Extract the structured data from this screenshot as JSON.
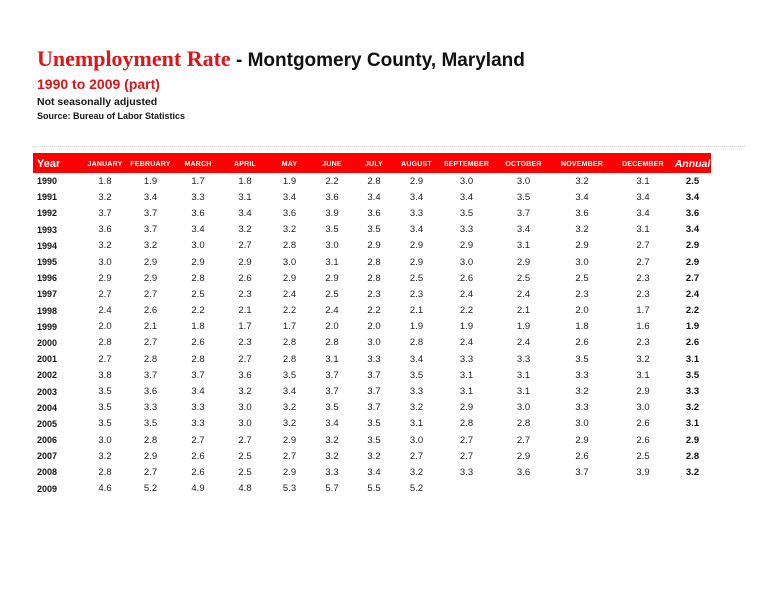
{
  "header": {
    "title_red": "Unemployment Rate",
    "title_black": " - Montgomery County, Maryland",
    "subtitle": "1990 to 2009 (part)",
    "note": "Not seasonally adjusted",
    "source": "Source: Bureau of Labor Statistics"
  },
  "colors": {
    "band_red": "#fe0000",
    "title_red": "#dd1418",
    "header_text": "#ffffff"
  },
  "table": {
    "year_header": "Year",
    "annual_header": "Annual",
    "month_headers": [
      "JANUARY",
      "FEBRUARY",
      "MARCH",
      "APRIL",
      "MAY",
      "JUNE",
      "JULY",
      "AUGUST",
      "SEPTEMBER",
      "OCTOBER",
      "NOVEMBER",
      "DECEMBER"
    ],
    "rows": [
      {
        "year": "1990",
        "months": [
          "1.8",
          "1.9",
          "1.7",
          "1.8",
          "1.9",
          "2.2",
          "2.8",
          "2.9",
          "3.0",
          "3.0",
          "3.2",
          "3.1"
        ],
        "annual": "2.5"
      },
      {
        "year": "1991",
        "months": [
          "3.2",
          "3.4",
          "3.3",
          "3.1",
          "3.4",
          "3.6",
          "3.4",
          "3.4",
          "3.4",
          "3.5",
          "3.4",
          "3.4"
        ],
        "annual": "3.4"
      },
      {
        "year": "1992",
        "months": [
          "3.7",
          "3.7",
          "3.6",
          "3.4",
          "3.6",
          "3.9",
          "3.6",
          "3.3",
          "3.5",
          "3.7",
          "3.6",
          "3.4"
        ],
        "annual": "3.6"
      },
      {
        "year": "1993",
        "months": [
          "3.6",
          "3.7",
          "3.4",
          "3.2",
          "3.2",
          "3.5",
          "3.5",
          "3.4",
          "3.3",
          "3.4",
          "3.2",
          "3.1"
        ],
        "annual": "3.4"
      },
      {
        "year": "1994",
        "months": [
          "3.2",
          "3.2",
          "3.0",
          "2.7",
          "2.8",
          "3.0",
          "2.9",
          "2.9",
          "2.9",
          "3.1",
          "2.9",
          "2.7"
        ],
        "annual": "2.9"
      },
      {
        "year": "1995",
        "months": [
          "3.0",
          "2.9",
          "2.9",
          "2.9",
          "3.0",
          "3.1",
          "2.8",
          "2.9",
          "3.0",
          "2.9",
          "3.0",
          "2.7"
        ],
        "annual": "2.9"
      },
      {
        "year": "1996",
        "months": [
          "2.9",
          "2.9",
          "2.8",
          "2.6",
          "2.9",
          "2.9",
          "2.8",
          "2.5",
          "2.6",
          "2.5",
          "2.5",
          "2.3"
        ],
        "annual": "2.7"
      },
      {
        "year": "1997",
        "months": [
          "2.7",
          "2.7",
          "2.5",
          "2.3",
          "2.4",
          "2.5",
          "2.3",
          "2.3",
          "2.4",
          "2.4",
          "2.3",
          "2.3"
        ],
        "annual": "2.4"
      },
      {
        "year": "1998",
        "months": [
          "2.4",
          "2.6",
          "2.2",
          "2.1",
          "2.2",
          "2.4",
          "2.2",
          "2.1",
          "2.2",
          "2.1",
          "2.0",
          "1.7"
        ],
        "annual": "2.2"
      },
      {
        "year": "1999",
        "months": [
          "2.0",
          "2.1",
          "1.8",
          "1.7",
          "1.7",
          "2.0",
          "2.0",
          "1.9",
          "1.9",
          "1.9",
          "1.8",
          "1.6"
        ],
        "annual": "1.9"
      },
      {
        "year": "2000",
        "months": [
          "2.8",
          "2.7",
          "2.6",
          "2.3",
          "2.8",
          "2.8",
          "3.0",
          "2.8",
          "2.4",
          "2.4",
          "2.6",
          "2.3"
        ],
        "annual": "2.6"
      },
      {
        "year": "2001",
        "months": [
          "2.7",
          "2.8",
          "2.8",
          "2.7",
          "2.8",
          "3.1",
          "3.3",
          "3.4",
          "3.3",
          "3.3",
          "3.5",
          "3.2"
        ],
        "annual": "3.1"
      },
      {
        "year": "2002",
        "months": [
          "3.8",
          "3.7",
          "3.7",
          "3.6",
          "3.5",
          "3.7",
          "3.7",
          "3.5",
          "3.1",
          "3.1",
          "3.3",
          "3.1"
        ],
        "annual": "3.5"
      },
      {
        "year": "2003",
        "months": [
          "3.5",
          "3.6",
          "3.4",
          "3.2",
          "3.4",
          "3.7",
          "3.7",
          "3.3",
          "3.1",
          "3.1",
          "3.2",
          "2.9"
        ],
        "annual": "3.3"
      },
      {
        "year": "2004",
        "months": [
          "3.5",
          "3.3",
          "3.3",
          "3.0",
          "3.2",
          "3.5",
          "3.7",
          "3.2",
          "2.9",
          "3.0",
          "3.3",
          "3.0"
        ],
        "annual": "3.2"
      },
      {
        "year": "2005",
        "months": [
          "3.5",
          "3.5",
          "3.3",
          "3.0",
          "3.2",
          "3.4",
          "3.5",
          "3.1",
          "2.8",
          "2.8",
          "3.0",
          "2.6"
        ],
        "annual": "3.1"
      },
      {
        "year": "2006",
        "months": [
          "3.0",
          "2.8",
          "2.7",
          "2.7",
          "2.9",
          "3.2",
          "3.5",
          "3.0",
          "2.7",
          "2.7",
          "2.9",
          "2.6"
        ],
        "annual": "2.9"
      },
      {
        "year": "2007",
        "months": [
          "3.2",
          "2.9",
          "2.6",
          "2.5",
          "2.7",
          "3.2",
          "3.2",
          "2.7",
          "2.7",
          "2.9",
          "2.6",
          "2.5"
        ],
        "annual": "2.8"
      },
      {
        "year": "2008",
        "months": [
          "2.8",
          "2.7",
          "2.6",
          "2.5",
          "2.9",
          "3.3",
          "3.4",
          "3.2",
          "3.3",
          "3.6",
          "3.7",
          "3.9"
        ],
        "annual": "3.2"
      },
      {
        "year": "2009",
        "months": [
          "4.6",
          "5.2",
          "4.9",
          "4.8",
          "5.3",
          "5.7",
          "5.5",
          "5.2",
          "",
          "",
          "",
          ""
        ],
        "annual": ""
      }
    ]
  }
}
